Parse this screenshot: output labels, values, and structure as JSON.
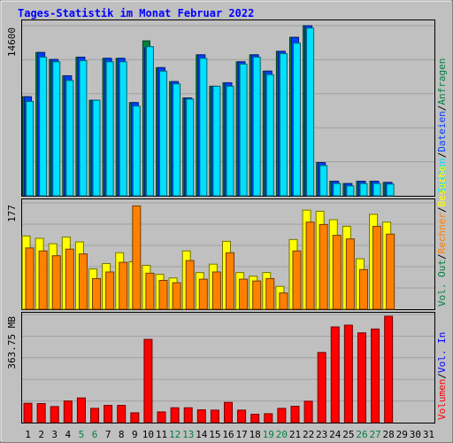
{
  "chart_data": {
    "type": "bar",
    "title": "Tages-Statistik im Monat Februar 2022",
    "categories": [
      "1",
      "2",
      "3",
      "4",
      "5",
      "6",
      "7",
      "8",
      "9",
      "10",
      "11",
      "12",
      "13",
      "14",
      "15",
      "16",
      "17",
      "18",
      "19",
      "20",
      "21",
      "22",
      "23",
      "24",
      "25",
      "26",
      "27",
      "28",
      "29",
      "30",
      "31"
    ],
    "weekend_days": [
      "5",
      "6",
      "12",
      "13",
      "19",
      "20",
      "26",
      "27"
    ],
    "panels": [
      {
        "id": "top",
        "max_label": "14600",
        "ylim": [
          0,
          14600
        ],
        "series": [
          {
            "name": "Anfragen",
            "color": "#008040",
            "values": [
              8500,
              12300,
              11700,
              10300,
              11900,
              8200,
              11800,
              11800,
              8000,
              13300,
              11000,
              9800,
              8400,
              12100,
              9400,
              9700,
              11500,
              12100,
              10700,
              12400,
              13600,
              14600,
              2850,
              1250,
              1050,
              1250,
              1250,
              1150,
              null,
              null,
              null
            ]
          },
          {
            "name": "Dateien",
            "color": "#0040ff",
            "values": [
              8500,
              12300,
              11700,
              10300,
              11900,
              8200,
              11800,
              11800,
              8000,
              12700,
              11000,
              9800,
              8400,
              12100,
              9400,
              9700,
              11500,
              12100,
              10700,
              12400,
              13600,
              14600,
              2850,
              1250,
              1050,
              1250,
              1250,
              1150,
              null,
              null,
              null
            ]
          },
          {
            "name": "Seiten",
            "color": "#00e0ff",
            "values": [
              8100,
              11900,
              11500,
              9900,
              11600,
              8200,
              11500,
              11500,
              7700,
              12800,
              10700,
              9600,
              8300,
              11800,
              9400,
              9400,
              11300,
              11900,
              10400,
              12200,
              13100,
              14400,
              2600,
              1050,
              850,
              1050,
              1050,
              1000,
              null,
              null,
              null
            ]
          }
        ]
      },
      {
        "id": "middle",
        "max_label": "177",
        "ylim": [
          0,
          177
        ],
        "series": [
          {
            "name": "Besuche",
            "color": "#ffff00",
            "values": [
              122,
              118,
              109,
              120,
              112,
              67,
              76,
              94,
              79,
              73,
              58,
              52,
              97,
              61,
              75,
              113,
              61,
              55,
              61,
              38,
              116,
              165,
              163,
              149,
              138,
              84,
              158,
              145,
              null,
              null,
              null
            ]
          },
          {
            "name": "Rechner",
            "color": "#ff8000",
            "values": [
              102,
              97,
              89,
              100,
              92,
              51,
              62,
              78,
              172,
              60,
              48,
              44,
              81,
              50,
              62,
              94,
              50,
              47,
              51,
              27,
              97,
              145,
              141,
              123,
              117,
              66,
              138,
              125,
              null,
              null,
              null
            ]
          }
        ]
      },
      {
        "id": "bottom",
        "max_label": "363.75 MB",
        "ylim": [
          0,
          363.75
        ],
        "series": [
          {
            "name": "Volumen",
            "color": "#ff0000",
            "values": [
              65,
              64,
              54,
              73,
              83,
              48,
              58,
              58,
              33,
              280,
              36,
              50,
              50,
              43,
              42,
              68,
              42,
              28,
              30,
              48,
              55,
              72,
              236,
              322,
              328,
              302,
              315,
              358,
              null,
              null,
              null
            ]
          }
        ]
      }
    ]
  },
  "right_legend": {
    "top": [
      "Anfragen",
      "/",
      "Dateien",
      "/",
      "Seiten"
    ],
    "middle": [
      "Besuche",
      "/",
      "Rechner",
      "/",
      "Vol. Out"
    ],
    "bottom": [
      "Vol. In",
      "/",
      "Volumen"
    ]
  },
  "colors": {
    "background": "#c0c0c0",
    "plot_bg": "#c0c0c0",
    "grid": "#a0a0a0",
    "title": "#0000ff",
    "weekday_label": "#000000",
    "weekend_label": "#008040",
    "vol_out": "#008040",
    "vol_in": "#0000ff"
  }
}
